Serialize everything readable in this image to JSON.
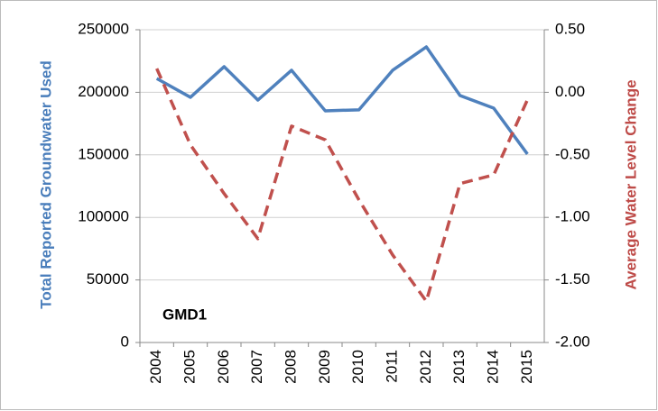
{
  "chart_data": {
    "type": "line",
    "y_label": "Total Reported Groundwater Used",
    "y2_label": "Average Water Level Change",
    "annotation": "GMD1",
    "categories": [
      "2004",
      "2005",
      "2006",
      "2007",
      "2008",
      "2009",
      "2010",
      "2011",
      "2012",
      "2013",
      "2014",
      "2015"
    ],
    "series": [
      {
        "name": "Total Reported Groundwater Used",
        "color": "#4f81bd",
        "values": [
          211000,
          196000,
          220500,
          193800,
          217600,
          185200,
          186000,
          217600,
          236300,
          197400,
          187300,
          150600
        ]
      },
      {
        "name": "Average Water Level Change",
        "color": "#c0504d",
        "axis": "y2",
        "dashed": true,
        "values": [
          0.19,
          -0.42,
          -0.81,
          -1.17,
          -0.27,
          -0.38,
          -0.86,
          -1.3,
          -1.67,
          -0.73,
          -0.66,
          -0.06
        ]
      }
    ],
    "ylim": [
      0,
      250000
    ],
    "yticks": [
      0,
      50000,
      100000,
      150000,
      200000,
      250000
    ],
    "y2lim": [
      -2,
      0.5
    ],
    "y2ticks": [
      {
        "value": -2,
        "label": "-2.00"
      },
      {
        "value": -1.5,
        "label": "-1.50"
      },
      {
        "value": -1,
        "label": "-1.00"
      },
      {
        "value": -0.5,
        "label": "-0.50"
      },
      {
        "value": 0,
        "label": "0.00"
      },
      {
        "value": 0.5,
        "label": "0.50"
      }
    ],
    "grid": true
  }
}
